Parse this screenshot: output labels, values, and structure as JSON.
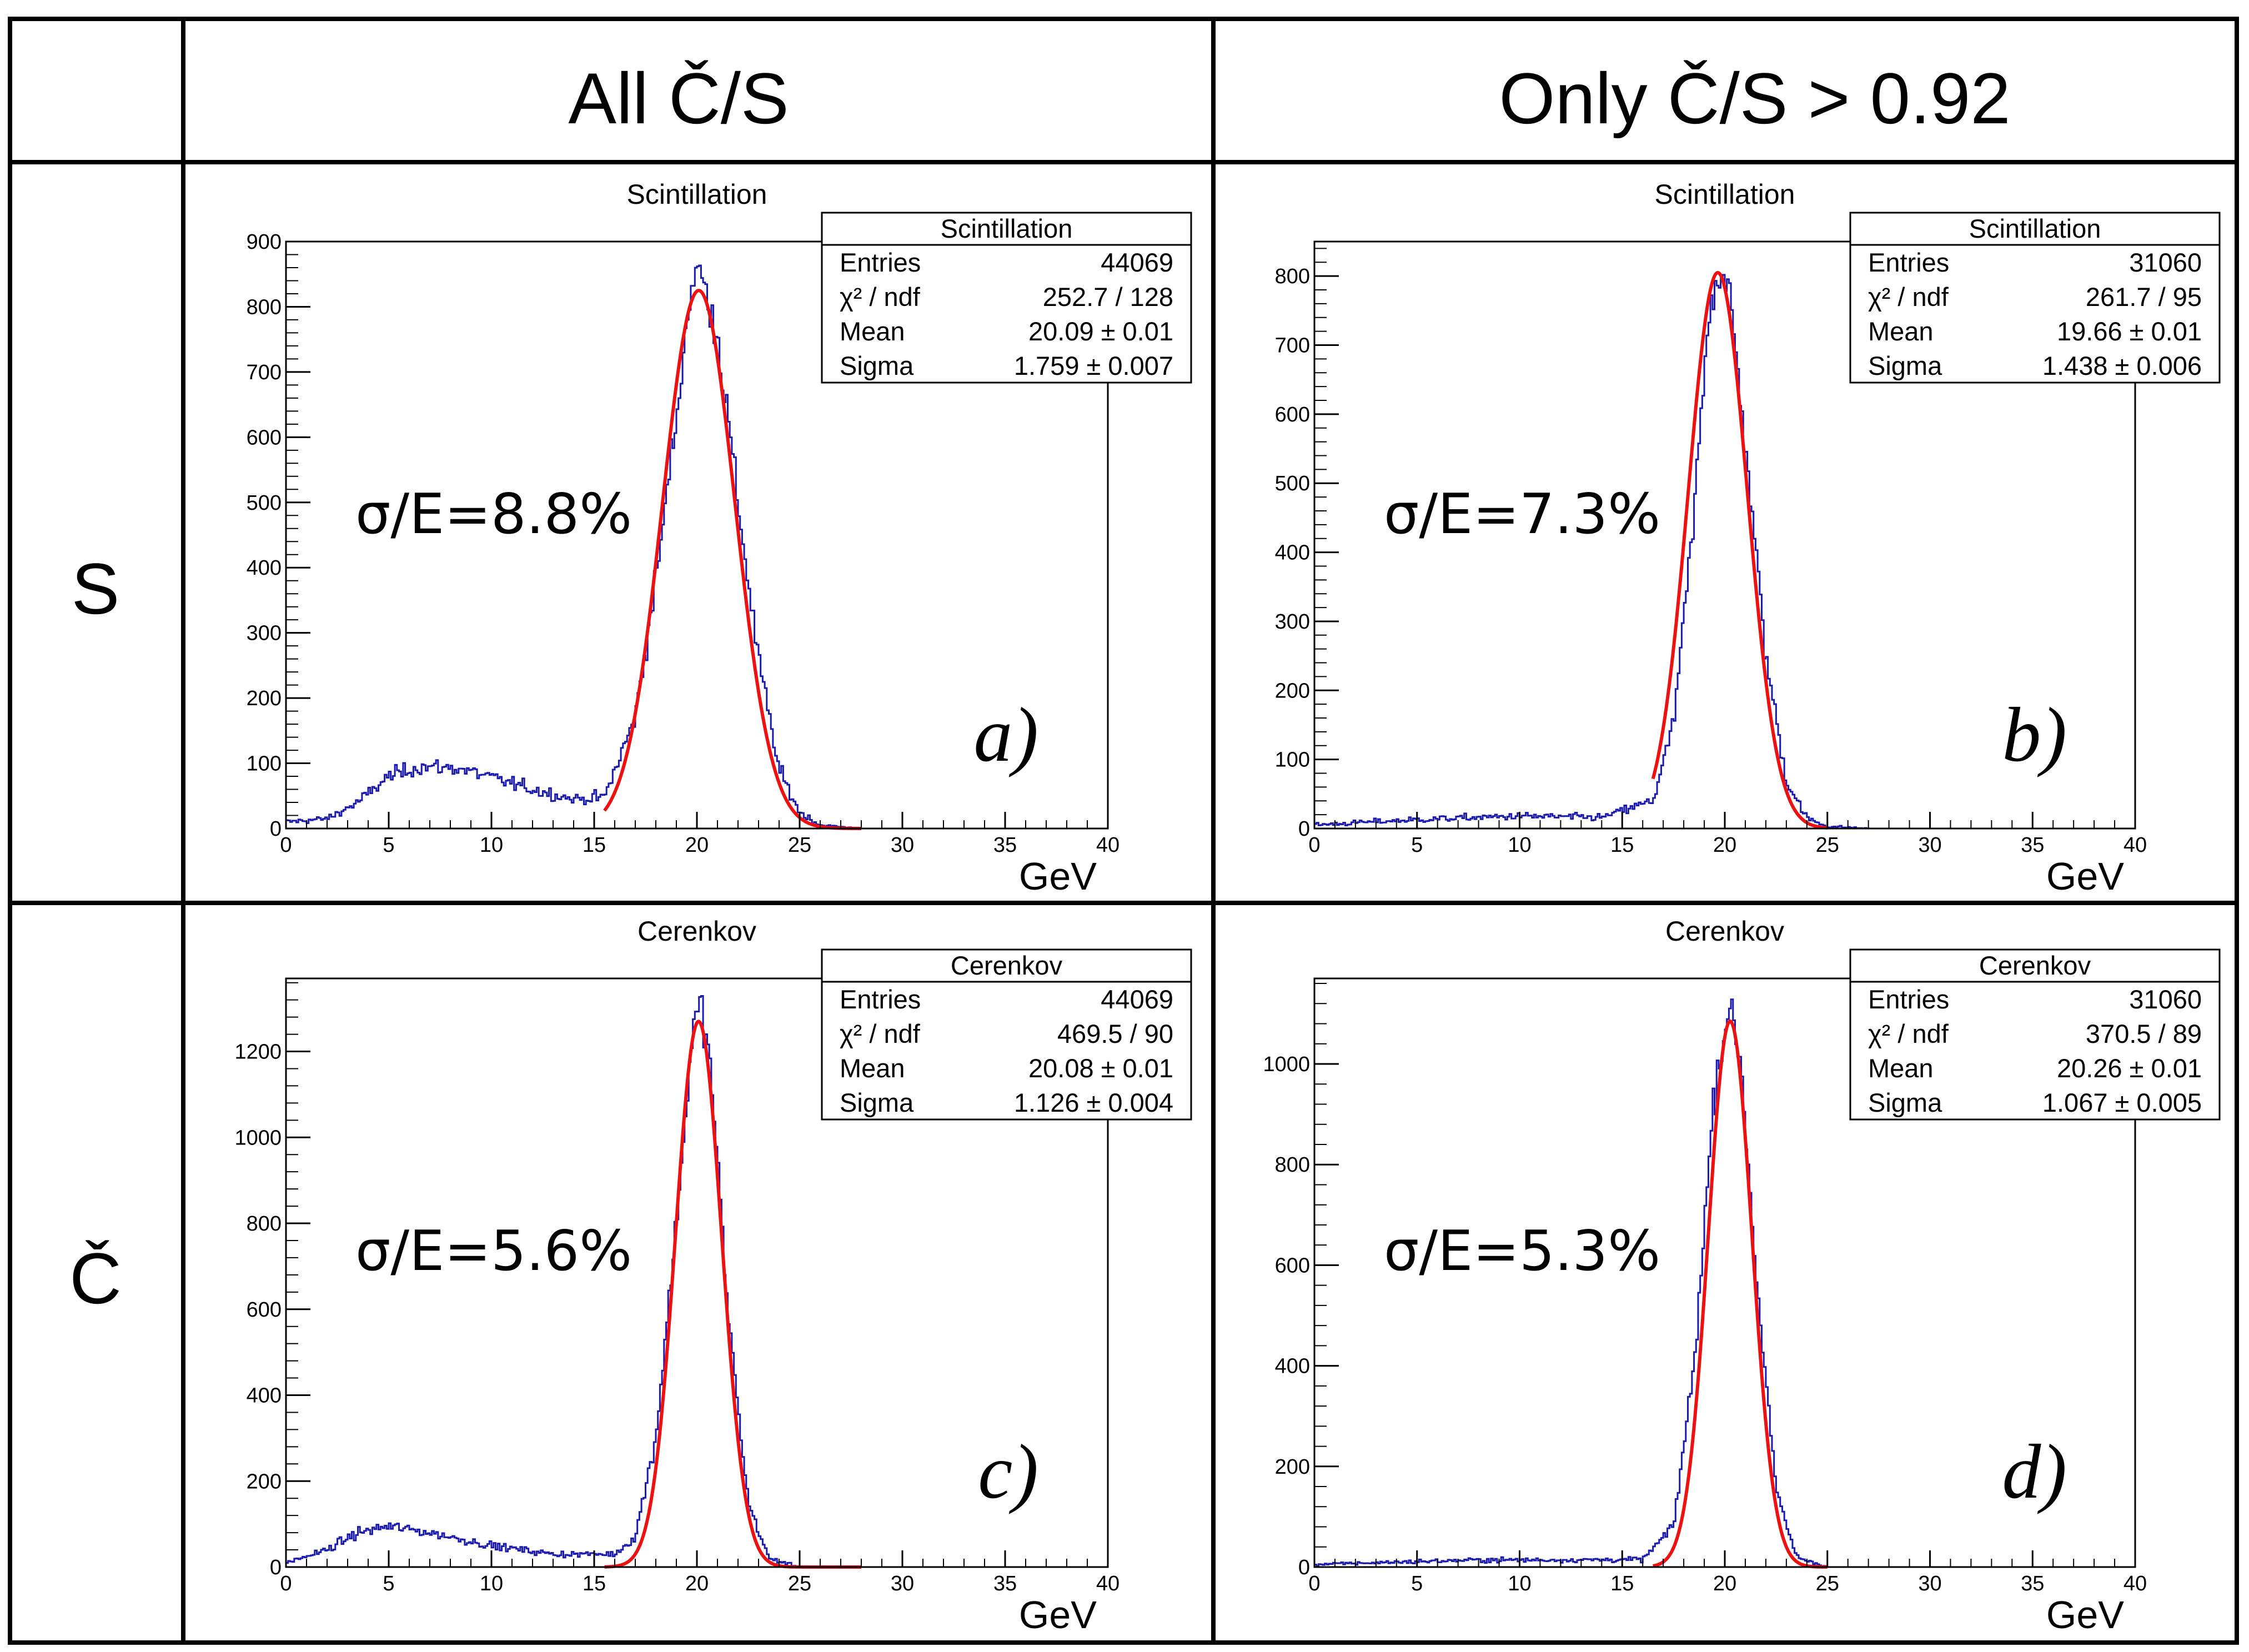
{
  "headers": {
    "col1": "All Č/S",
    "col2": "Only Č/S > 0.92",
    "row1": "S",
    "row2": "Č"
  },
  "colors": {
    "histogram": "#1a1ab0",
    "fit": "#ee1111",
    "frame": "#000000"
  },
  "chart_data": [
    {
      "type": "histogram",
      "title": "Scintillation",
      "xlabel": "GeV",
      "ylabel": "",
      "xlim": [
        0,
        40
      ],
      "ylim": [
        0,
        900
      ],
      "xticks": [
        0,
        5,
        10,
        15,
        20,
        25,
        30,
        35,
        40
      ],
      "yticks": [
        0,
        100,
        200,
        300,
        400,
        500,
        600,
        700,
        800,
        900
      ],
      "stats": {
        "name": "Scintillation",
        "rows": [
          [
            "Entries",
            "44069"
          ],
          [
            "χ² / ndf",
            "252.7 / 128"
          ],
          [
            "Mean",
            "20.09 ± 0.01"
          ],
          [
            "Sigma",
            "1.759 ± 0.007"
          ]
        ]
      },
      "resolution": "σ/E=8.8%",
      "label": "a)",
      "fit": {
        "type": "gaussian",
        "amplitude": 825,
        "mean": 20.09,
        "sigma": 1.759,
        "range": [
          15.5,
          28
        ]
      },
      "background": {
        "amplitude": 90,
        "mean": 7.5,
        "sigma": 3.3
      },
      "histogram_envelope": [
        [
          0,
          10
        ],
        [
          2,
          15
        ],
        [
          3.5,
          40
        ],
        [
          5,
          80
        ],
        [
          6.5,
          95
        ],
        [
          8.5,
          92
        ],
        [
          10,
          78
        ],
        [
          12,
          60
        ],
        [
          14,
          45
        ],
        [
          15.5,
          48
        ],
        [
          17,
          170
        ],
        [
          18,
          380
        ],
        [
          19,
          630
        ],
        [
          19.7,
          830
        ],
        [
          20,
          860
        ],
        [
          20.5,
          820
        ],
        [
          21,
          760
        ],
        [
          22,
          500
        ],
        [
          23,
          260
        ],
        [
          24,
          90
        ],
        [
          25,
          25
        ],
        [
          26,
          5
        ],
        [
          28,
          0
        ],
        [
          40,
          0
        ]
      ]
    },
    {
      "type": "histogram",
      "title": "Scintillation",
      "xlabel": "GeV",
      "ylabel": "",
      "xlim": [
        0,
        40
      ],
      "ylim": [
        0,
        850
      ],
      "xticks": [
        0,
        5,
        10,
        15,
        20,
        25,
        30,
        35,
        40
      ],
      "yticks": [
        0,
        100,
        200,
        300,
        400,
        500,
        600,
        700,
        800
      ],
      "stats": {
        "name": "Scintillation",
        "rows": [
          [
            "Entries",
            "31060"
          ],
          [
            "χ² / ndf",
            "261.7 / 95"
          ],
          [
            "Mean",
            "19.66 ± 0.01"
          ],
          [
            "Sigma",
            "1.438 ± 0.006"
          ]
        ]
      },
      "resolution": "σ/E=7.3%",
      "label": "b)",
      "fit": {
        "type": "gaussian",
        "amplitude": 805,
        "mean": 19.66,
        "sigma": 1.438,
        "range": [
          16.5,
          25
        ]
      },
      "background": {
        "amplitude": 16,
        "mean": 9,
        "sigma": 6
      },
      "histogram_envelope": [
        [
          0,
          5
        ],
        [
          3,
          10
        ],
        [
          6,
          14
        ],
        [
          10,
          18
        ],
        [
          14,
          16
        ],
        [
          16.5,
          40
        ],
        [
          17.5,
          150
        ],
        [
          18.5,
          450
        ],
        [
          19.2,
          750
        ],
        [
          19.7,
          810
        ],
        [
          20.2,
          780
        ],
        [
          21,
          560
        ],
        [
          22,
          250
        ],
        [
          23,
          70
        ],
        [
          24,
          15
        ],
        [
          25,
          3
        ],
        [
          27,
          0
        ],
        [
          40,
          0
        ]
      ]
    },
    {
      "type": "histogram",
      "title": "Cerenkov",
      "xlabel": "GeV",
      "ylabel": "",
      "xlim": [
        0,
        40
      ],
      "ylim": [
        0,
        1370
      ],
      "xticks": [
        0,
        5,
        10,
        15,
        20,
        25,
        30,
        35,
        40
      ],
      "yticks": [
        0,
        200,
        400,
        600,
        800,
        1000,
        1200
      ],
      "stats": {
        "name": "Cerenkov",
        "rows": [
          [
            "Entries",
            "44069"
          ],
          [
            "χ² / ndf",
            "469.5 / 90"
          ],
          [
            "Mean",
            "20.08 ± 0.01"
          ],
          [
            "Sigma",
            "1.126 ± 0.004"
          ]
        ]
      },
      "resolution": "σ/E=5.6%",
      "label": "c)",
      "fit": {
        "type": "gaussian",
        "amplitude": 1270,
        "mean": 20.08,
        "sigma": 1.126,
        "range": [
          15.5,
          28
        ]
      },
      "background": {
        "amplitude": 90,
        "mean": 4.8,
        "sigma": 3.6
      },
      "histogram_envelope": [
        [
          0,
          10
        ],
        [
          2,
          40
        ],
        [
          3.5,
          80
        ],
        [
          5,
          95
        ],
        [
          7,
          80
        ],
        [
          10,
          50
        ],
        [
          13,
          30
        ],
        [
          16,
          30
        ],
        [
          17,
          70
        ],
        [
          18,
          300
        ],
        [
          19,
          800
        ],
        [
          19.8,
          1250
        ],
        [
          20.2,
          1310
        ],
        [
          20.7,
          1150
        ],
        [
          21.5,
          600
        ],
        [
          22.5,
          150
        ],
        [
          23.5,
          20
        ],
        [
          25,
          0
        ],
        [
          40,
          0
        ]
      ]
    },
    {
      "type": "histogram",
      "title": "Cerenkov",
      "xlabel": "GeV",
      "ylabel": "",
      "xlim": [
        0,
        40
      ],
      "ylim": [
        0,
        1170
      ],
      "xticks": [
        0,
        5,
        10,
        15,
        20,
        25,
        30,
        35,
        40
      ],
      "yticks": [
        0,
        200,
        400,
        600,
        800,
        1000
      ],
      "stats": {
        "name": "Cerenkov",
        "rows": [
          [
            "Entries",
            "31060"
          ],
          [
            "χ² / ndf",
            "370.5 / 89"
          ],
          [
            "Mean",
            "20.26 ± 0.01"
          ],
          [
            "Sigma",
            "1.067 ± 0.005"
          ]
        ]
      },
      "resolution": "σ/E=5.3%",
      "label": "d)",
      "fit": {
        "type": "gaussian",
        "amplitude": 1085,
        "mean": 20.26,
        "sigma": 1.067,
        "range": [
          16.5,
          25
        ]
      },
      "background": {
        "amplitude": 14,
        "mean": 9,
        "sigma": 6
      },
      "histogram_envelope": [
        [
          0,
          5
        ],
        [
          4,
          10
        ],
        [
          8,
          14
        ],
        [
          12,
          14
        ],
        [
          16,
          15
        ],
        [
          17.5,
          80
        ],
        [
          18.5,
          400
        ],
        [
          19.5,
          950
        ],
        [
          20.2,
          1120
        ],
        [
          20.8,
          1000
        ],
        [
          21.5,
          600
        ],
        [
          22.5,
          150
        ],
        [
          23.5,
          20
        ],
        [
          25,
          0
        ],
        [
          40,
          0
        ]
      ]
    }
  ]
}
